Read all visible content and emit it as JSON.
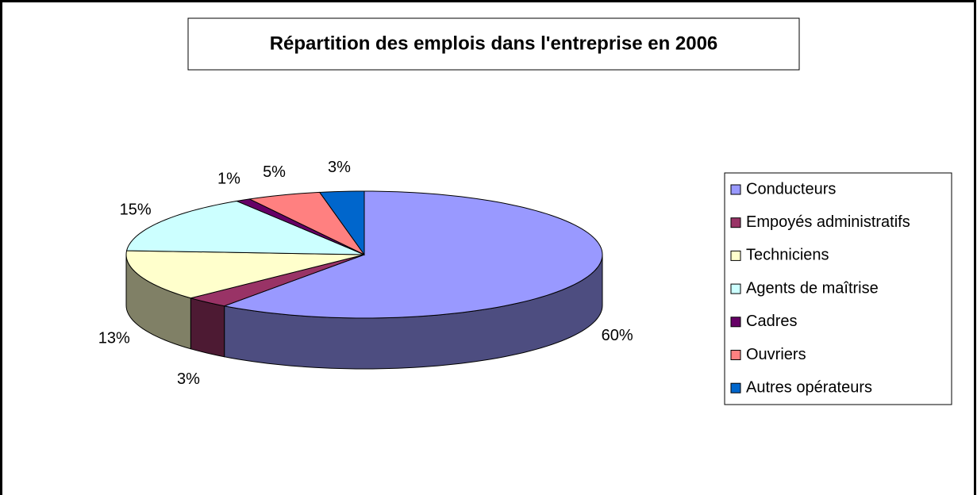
{
  "chart_data": {
    "type": "pie",
    "title": "Répartition des emplois dans l'entreprise en 2006",
    "categories": [
      "Conducteurs",
      "Empoyés administratifs",
      "Techniciens",
      "Agents de maîtrise",
      "Cadres",
      "Ouvriers",
      "Autres opérateurs"
    ],
    "values": [
      60,
      3,
      13,
      15,
      1,
      5,
      3
    ],
    "value_labels": [
      "60%",
      "3%",
      "13%",
      "15%",
      "1%",
      "5%",
      "3%"
    ],
    "colors": [
      "#9999ff",
      "#993366",
      "#ffffcc",
      "#ccffff",
      "#660066",
      "#ff8080",
      "#0066cc"
    ],
    "legend": "right",
    "three_d": true
  }
}
